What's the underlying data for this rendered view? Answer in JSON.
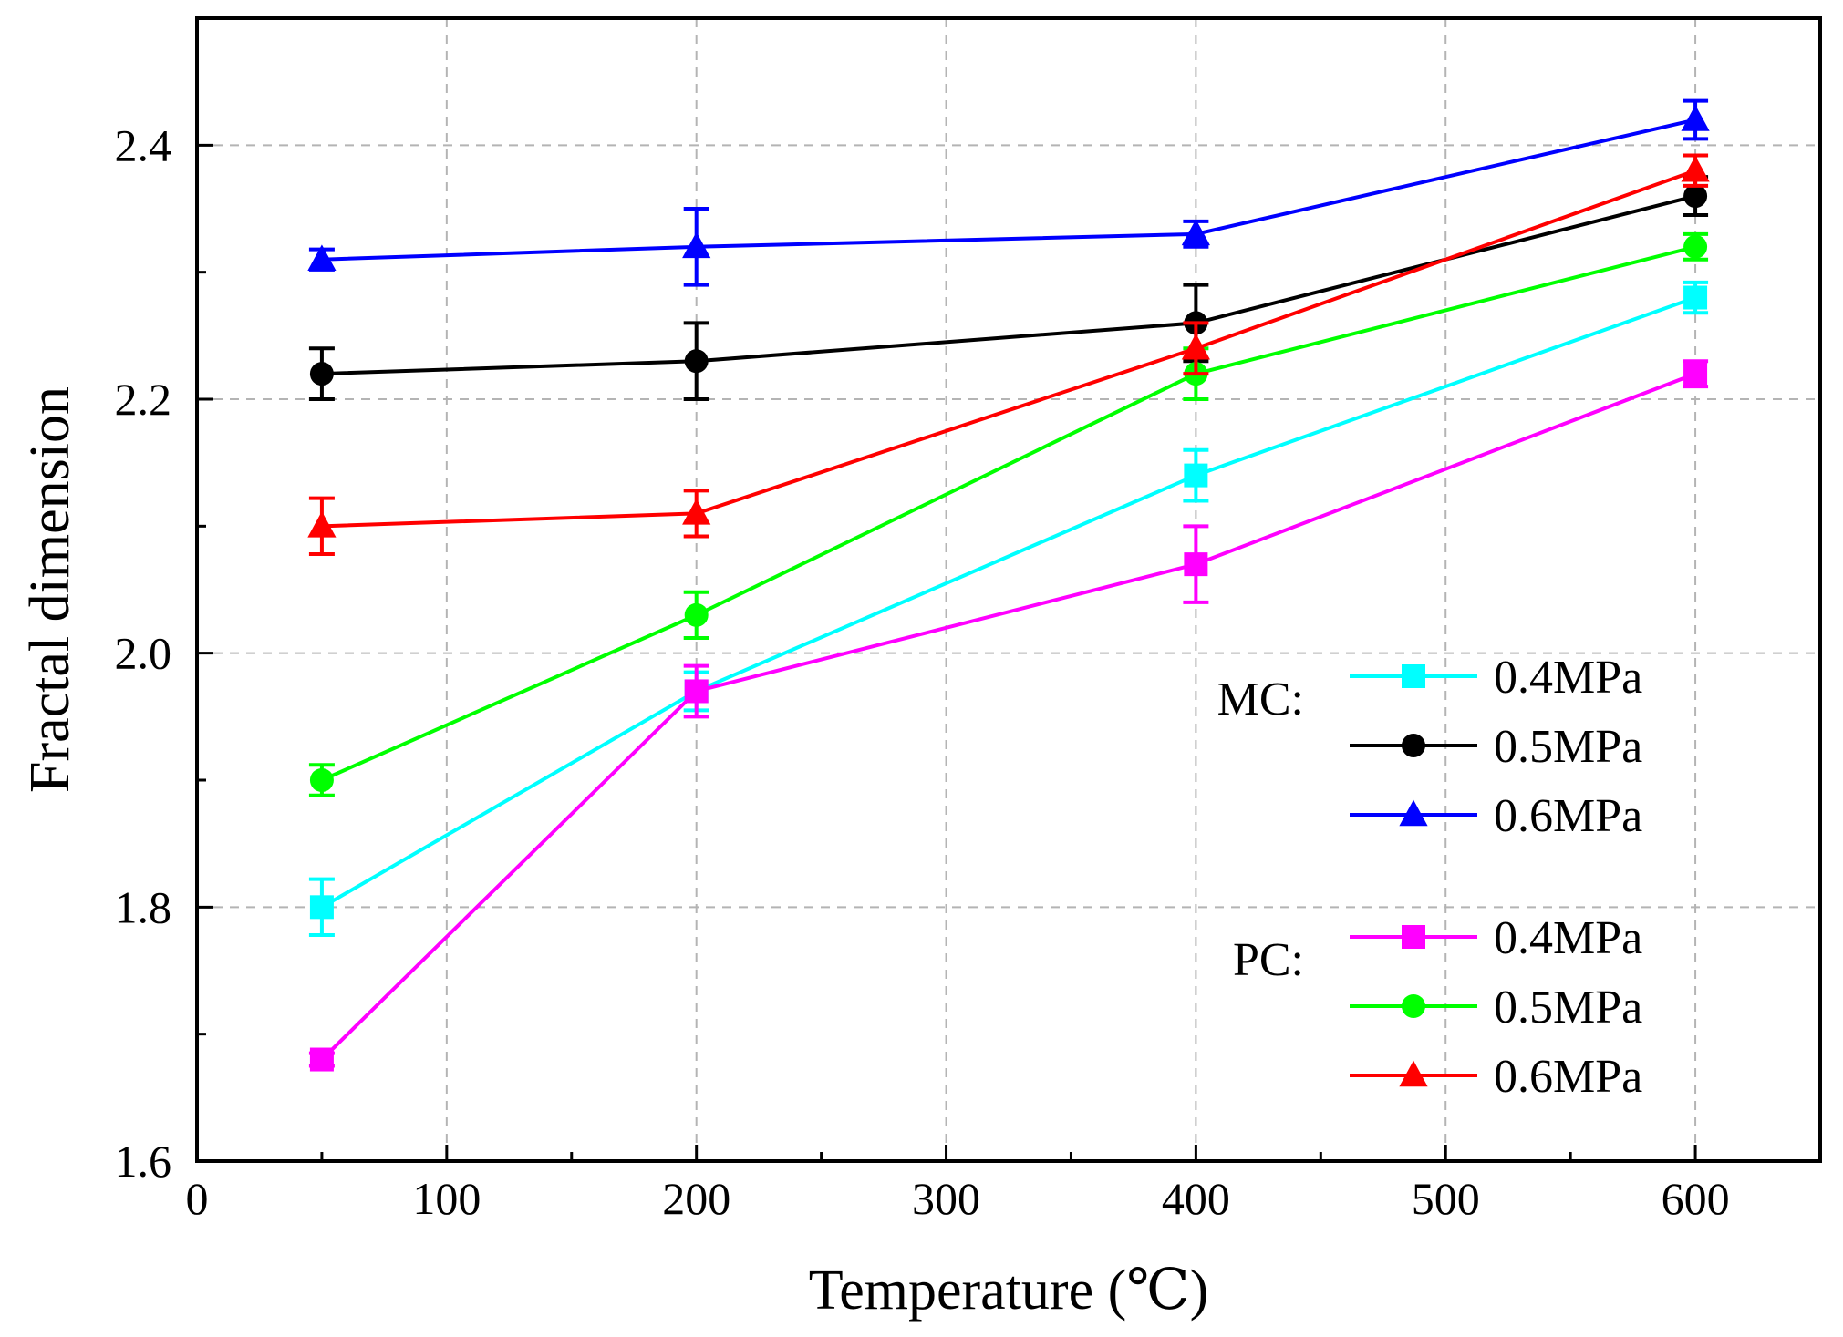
{
  "chart_data": {
    "type": "line",
    "title": "",
    "xlabel": "Temperature (℃)",
    "ylabel": "Fractal dimension",
    "xlim": [
      0,
      650
    ],
    "ylim": [
      1.6,
      2.5
    ],
    "xticks": [
      0,
      100,
      200,
      300,
      400,
      500,
      600
    ],
    "xtick_labels": [
      "0",
      "100",
      "200",
      "300",
      "400",
      "500",
      "600"
    ],
    "yticks": [
      1.6,
      1.8,
      2.0,
      2.2,
      2.4
    ],
    "ytick_labels": [
      "1.6",
      "1.8",
      "2.0",
      "2.2",
      "2.4"
    ],
    "grid": true,
    "legend_position": "right",
    "legend_groups": [
      {
        "label": "MC:",
        "series": [
          0,
          1,
          2
        ]
      },
      {
        "label": "PC:",
        "series": [
          3,
          4,
          5
        ]
      }
    ],
    "series": [
      {
        "name": "0.4MPa",
        "group": "MC",
        "color": "#00ffff",
        "marker": "square",
        "x": [
          50,
          200,
          400,
          600
        ],
        "y": [
          1.8,
          1.97,
          2.14,
          2.28
        ],
        "err": [
          0.022,
          0.015,
          0.02,
          0.012
        ]
      },
      {
        "name": "0.5MPa",
        "group": "MC",
        "color": "#000000",
        "marker": "circle",
        "x": [
          50,
          200,
          400,
          600
        ],
        "y": [
          2.22,
          2.23,
          2.26,
          2.36
        ],
        "err": [
          0.02,
          0.03,
          0.03,
          0.015
        ]
      },
      {
        "name": "0.6MPa",
        "group": "MC",
        "color": "#0000ff",
        "marker": "triangle",
        "x": [
          50,
          200,
          400,
          600
        ],
        "y": [
          2.31,
          2.32,
          2.33,
          2.42
        ],
        "err": [
          0.008,
          0.03,
          0.01,
          0.015
        ]
      },
      {
        "name": "0.4MPa",
        "group": "PC",
        "color": "#ff00ff",
        "marker": "square",
        "x": [
          50,
          200,
          400,
          600
        ],
        "y": [
          1.68,
          1.97,
          2.07,
          2.22
        ],
        "err": [
          0.005,
          0.02,
          0.03,
          0.01
        ]
      },
      {
        "name": "0.5MPa",
        "group": "PC",
        "color": "#00ff00",
        "marker": "circle",
        "x": [
          50,
          200,
          400,
          600
        ],
        "y": [
          1.9,
          2.03,
          2.22,
          2.32
        ],
        "err": [
          0.012,
          0.018,
          0.02,
          0.01
        ]
      },
      {
        "name": "0.6MPa",
        "group": "PC",
        "color": "#ff0000",
        "marker": "triangle",
        "x": [
          50,
          200,
          400,
          600
        ],
        "y": [
          2.1,
          2.11,
          2.24,
          2.38
        ],
        "err": [
          0.022,
          0.018,
          0.02,
          0.012
        ]
      }
    ]
  }
}
